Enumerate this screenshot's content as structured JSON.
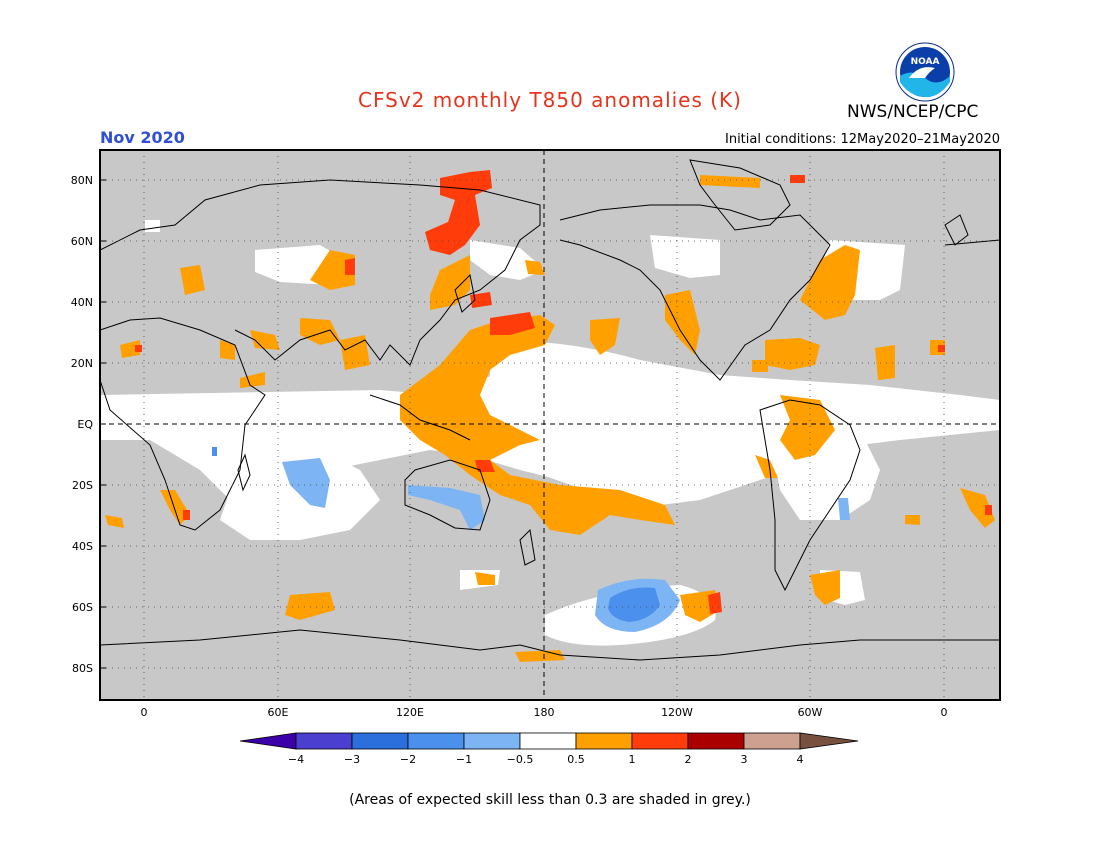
{
  "header": {
    "title": "CFSv2 monthly T850 anomalies (K)",
    "month": "Nov 2020",
    "initial_conditions": "Initial conditions: 12May2020–21May2020",
    "agency": "NWS/NCEP/CPC",
    "logo_text": "NOAA"
  },
  "axes": {
    "lat_labels": [
      "80N",
      "60N",
      "40N",
      "20N",
      "EQ",
      "20S",
      "40S",
      "60S",
      "80S"
    ],
    "lon_labels": [
      "0",
      "60E",
      "120E",
      "180",
      "120W",
      "60W",
      "0"
    ]
  },
  "legend": {
    "tick_labels": [
      "−4",
      "−3",
      "−2",
      "−1",
      "−0.5",
      "0.5",
      "1",
      "2",
      "3",
      "4"
    ],
    "colors": [
      "#3b00a8",
      "#4a3fcf",
      "#2a6fdc",
      "#4a90ec",
      "#7db4f3",
      "#ffffff",
      "#ffa000",
      "#ff3c0a",
      "#aa0000",
      "#cda090",
      "#785040"
    ]
  },
  "footer": {
    "skill_note": "(Areas of expected skill less than 0.3 are shaded in grey.)"
  },
  "colors": {
    "grey_mask": "#c8c8c8",
    "orange": "#ffa000",
    "red": "#ff3c0a",
    "blue_light": "#7db4f3",
    "blue_mid": "#4a90ec"
  }
}
